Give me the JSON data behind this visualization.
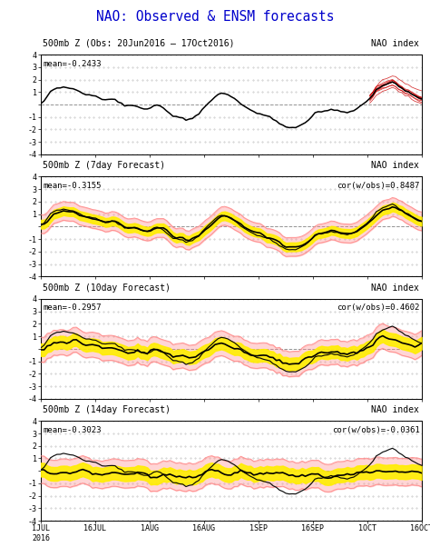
{
  "main_title": "NAO: Observed & ENSM forecasts",
  "main_title_color": "#0000cc",
  "background_color": "#ffffff",
  "panel_bg": "#ffffff",
  "n_panels": 4,
  "panels": [
    {
      "subtitle_left": "500mb Z (Obs: 20Jun2016 – 17Oct2016)",
      "subtitle_right": "NAO index",
      "mean_label": "mean=-0.2433",
      "cor_label": "",
      "ylim": [
        -4,
        4
      ],
      "yticks": [
        -4,
        -3,
        -2,
        -1,
        0,
        1,
        2,
        3,
        4
      ],
      "type": "obs"
    },
    {
      "subtitle_left": "500mb Z (7day Forecast)",
      "subtitle_right": "NAO index",
      "mean_label": "mean=-0.3155",
      "cor_label": "cor(w/obs)=0.8487",
      "ylim": [
        -4,
        4
      ],
      "yticks": [
        -4,
        -3,
        -2,
        -1,
        0,
        1,
        2,
        3,
        4
      ],
      "type": "7day"
    },
    {
      "subtitle_left": "500mb Z (10day Forecast)",
      "subtitle_right": "NAO index",
      "mean_label": "mean=-0.2957",
      "cor_label": "cor(w/obs)=0.4602",
      "ylim": [
        -4,
        4
      ],
      "yticks": [
        -4,
        -3,
        -2,
        -1,
        0,
        1,
        2,
        3,
        4
      ],
      "type": "10day"
    },
    {
      "subtitle_left": "500mb Z (14day Forecast)",
      "subtitle_right": "NAO index",
      "mean_label": "mean=-0.3023",
      "cor_label": "cor(w/obs)=-0.0361",
      "ylim": [
        -4,
        4
      ],
      "yticks": [
        -4,
        -3,
        -2,
        -1,
        0,
        1,
        2,
        3,
        4
      ],
      "type": "14day"
    }
  ],
  "xtick_labels": [
    "1JUL\n2016",
    "16JUL",
    "1AUG",
    "16AUG",
    "1SEP",
    "16SEP",
    "1OCT",
    "16OCT"
  ],
  "obs_line_color": "#000000",
  "ensemble_mean_color": "#000000",
  "yellow_fill_color": "#ffee00",
  "pink_line_color": "#ff8888",
  "red_ensemble_color": "#cc0000",
  "dashed_zero_color": "#888888",
  "dot_grid_color": "#bbbbbb"
}
